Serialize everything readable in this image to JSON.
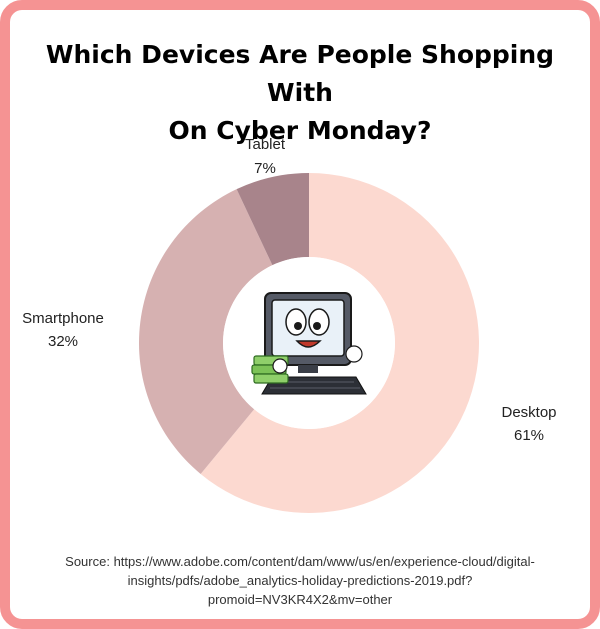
{
  "colors": {
    "frame": "#f59393",
    "desktop": "#fcd9d0",
    "smartphone": "#d6b1b1",
    "tablet": "#a8848b"
  },
  "title_lines": [
    "Which Devices Are People Shopping With",
    "On Cyber Monday?"
  ],
  "center_icon": "computer-mascot-holding-cash-icon",
  "chart_data": {
    "type": "pie",
    "donut": true,
    "title": "Which Devices Are People Shopping With On Cyber Monday?",
    "categories": [
      "Desktop",
      "Smartphone",
      "Tablet"
    ],
    "values": [
      61,
      32,
      7
    ],
    "value_labels": [
      "61%",
      "32%",
      "7%"
    ],
    "start": "12 o'clock",
    "direction": "clockwise",
    "legend": "none",
    "labels_position": "outside"
  },
  "source_lines": [
    "Source: https://www.adobe.com/content/dam/www/us/en/experience-cloud/digital-",
    "insights/pdfs/adobe_analytics-holiday-predictions-2019.pdf?",
    "promoid=NV3KR4X2&mv=other"
  ]
}
